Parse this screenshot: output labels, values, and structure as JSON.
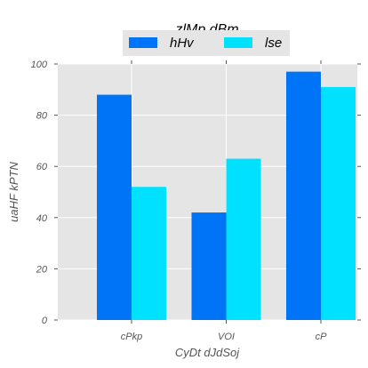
{
  "chart_data": {
    "type": "bar",
    "title": "zlMp dBm",
    "xlabel": "CyDt dJdSoj",
    "ylabel": "uaHF kPTN",
    "categories": [
      "cPkp",
      "VOI",
      "cP"
    ],
    "series": [
      {
        "name": "hHv",
        "values": [
          88,
          42,
          97
        ],
        "color": "#0074f7"
      },
      {
        "name": "lse",
        "values": [
          52,
          63,
          91
        ],
        "color": "#00e0ff"
      }
    ],
    "ylim": [
      0,
      100
    ],
    "yticks": [
      0,
      20,
      40,
      60,
      80,
      100
    ],
    "grid": true,
    "legend_position": "top-center",
    "background_color": "#e5e5e5",
    "grid_color": "#ffffff"
  }
}
